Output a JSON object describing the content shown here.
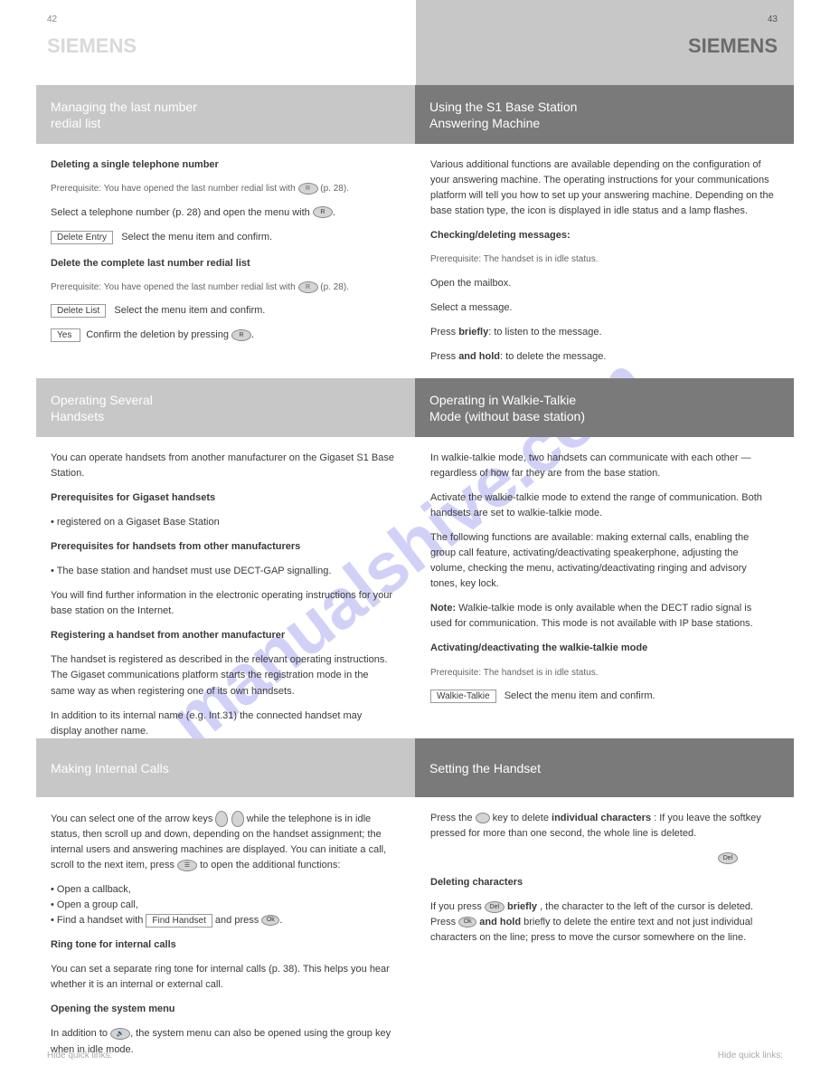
{
  "page": {
    "left_num": "42",
    "right_num": "43",
    "brand": "SIEMENS"
  },
  "bands": {
    "b1": {
      "left": "Managing the last number<br>redial list",
      "right": "Using the S1 Base Station<br>Answering Machine"
    },
    "b2": {
      "left": "Operating Several<br>Handsets",
      "right": "Operating in Walkie-Talkie<br>Mode (without base station)"
    },
    "b3": {
      "left": "Making Internal Calls",
      "right": "Setting the Handset"
    }
  },
  "sec1": {
    "left": {
      "delete_title": "Deleting a single telephone number",
      "delete_step1": "Select a telephone number (p. 28) and open the menu with ",
      "delete_step2": "Select the menu item and confirm.",
      "delete_item": "Delete Entry",
      "cond_title": "Prerequisite:",
      "cond_body": "You have opened the last number redial list with ",
      "cond_body2": " (p. 28).",
      "delall_title": "Delete the complete last number redial list",
      "delall_step": "Select the menu item and confirm.",
      "delall_item1": "Delete List",
      "delall_step2": "Confirm the deletion by pressing ",
      "delall_item2": "  Yes  "
    },
    "right": {
      "p1": "Various additional functions are available depending on the configuration of your answering machine. The operating instructions for your communications platform will tell you how to set up your answering machine. Depending on the base station type, the icon is displayed in idle status and a lamp flashes.",
      "title": "Checking/deleting messages:",
      "cond": "Prerequisite: The handset is in idle status.",
      "step1": "Open the mailbox.",
      "step2": "Select a message.",
      "step3": "Press ",
      "step3_rest": "briefly",
      "step3_cont": "to listen to the message.",
      "step4": "Press ",
      "step4_rest": "and hold",
      "step4_cont": "to delete the message."
    }
  },
  "sec2": {
    "left": {
      "p1": "You can operate handsets from another manufacturer on the Gigaset S1 Base Station.",
      "t1": "Prerequisites for Gigaset handsets",
      "p2": "• registered on a Gigaset Base Station",
      "t2": "Prerequisites for handsets from other manufacturers",
      "p3": "• The base station and handset must use DECT-GAP signalling.",
      "p4": "You will find further information in the electronic operating instructions for your base station on the Internet.",
      "t3": "Registering a handset from another manufacturer",
      "p5": "The handset is registered as described in the relevant operating instructions. The Gigaset communications platform starts the registration mode in the same way as when registering one of its own handsets.",
      "p6": "In addition to its internal name (e.g. Int.31) the connected handset may display another name."
    },
    "right": {
      "p1": "In walkie-talkie mode, two handsets can communicate with each other — regardless of how far they are from the base station.",
      "p2": "Activate the walkie-talkie mode to extend the range of communication. Both handsets are set to walkie-talkie mode.",
      "p3": "The following functions are available: making external calls, enabling the group call feature, activating/deactivating speakerphone, adjusting the volume, checking the menu, activating/deactivating ringing and advisory tones, key lock.",
      "note": "<b>Note:</b> Walkie-talkie mode is only available when the DECT radio signal is used for communication. This mode is not available with IP base stations.",
      "t2": "Activating/deactivating the walkie-talkie mode",
      "cond": "Prerequisite: The handset is in idle status.",
      "step": "Select the menu item and confirm.",
      "item": "Walkie-Talkie"
    }
  },
  "sec3": {
    "left": {
      "p1": "You can select one of the arrow keys ",
      "p1b": " while the telephone is in idle status, then scroll up and down, depending on the handset assignment; the internal users and answering machines are displayed. You can initiate a call, scroll to the next item, press ",
      "p1c": " to open the additional functions:",
      "li1": "Open a callback,",
      "li2": "Open a group call,",
      "li3": "Find a handset with ",
      "li3_item": "Find Handset",
      "li3b": " and press ",
      "t2": "Ring tone for internal calls",
      "p2": "You can set a separate ring tone for internal calls (p. 38). This helps you hear whether it is an internal or external call.",
      "t3": "Opening the system menu",
      "p3": "In addition to ",
      "p3b": ", the system menu can also be opened using the group key when in idle mode."
    },
    "right": {
      "p1": "Press the ",
      "p1b": " key to delete ",
      "p1c": "individual characters",
      "p1d": ": If you leave the softkey pressed for more than one second, the whole line is deleted.",
      "t2": "Deleting characters",
      "p2": "If you press ",
      "p2b": "briefly",
      "p2c": ", the character to the left of the cursor is deleted. Press ",
      "p2d": "and hold",
      "p2e": " briefly to delete the entire text and not just individual characters on the line; press to move the cursor somewhere on the line."
    }
  },
  "footer": "Hide quick links:"
}
